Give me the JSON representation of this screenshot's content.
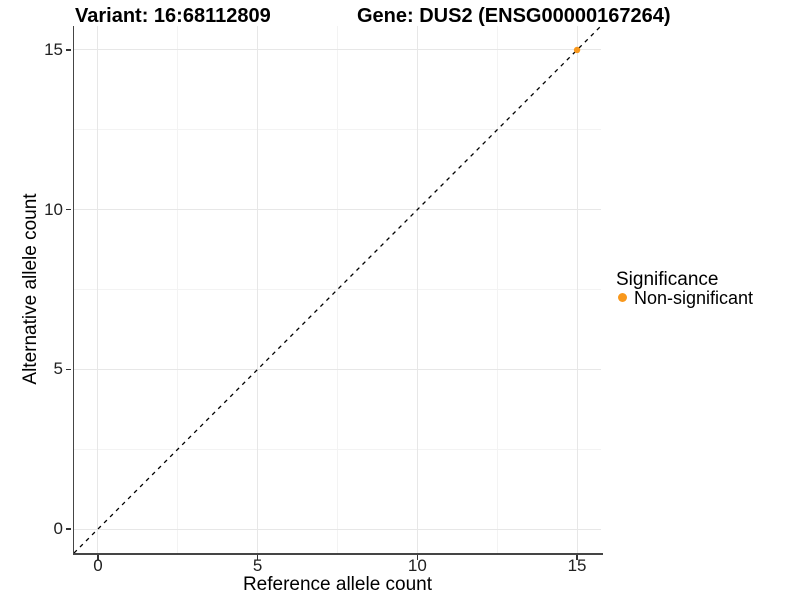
{
  "title": {
    "variant": "Variant: 16:68112809",
    "gene": "Gene: DUS2 (ENSG00000167264)"
  },
  "axes": {
    "x": {
      "label": "Reference allele count",
      "tick_labels": [
        "0",
        "5",
        "10",
        "15"
      ],
      "tick_values": [
        0,
        5,
        10,
        15
      ],
      "minor_values": [
        2.5,
        7.5,
        12.5
      ],
      "lim": [
        -0.75,
        15.75
      ]
    },
    "y": {
      "label": "Alternative allele count",
      "tick_labels": [
        "0",
        "5",
        "10",
        "15"
      ],
      "tick_values": [
        0,
        5,
        10,
        15
      ],
      "minor_values": [
        2.5,
        7.5,
        12.5
      ],
      "lim": [
        -0.75,
        15.75
      ]
    }
  },
  "legend": {
    "title": "Significance",
    "items": [
      {
        "label": "Non-significant",
        "color": "#f8981d"
      }
    ]
  },
  "colors": {
    "point_orange": "#f8981d",
    "grid_major": "#e7e7e7",
    "grid_minor": "#f3f3f3",
    "axis_line": "#454545",
    "dashed_line": "#000000"
  },
  "chart_data": {
    "type": "scatter",
    "title": "Variant: 16:68112809    Gene: DUS2 (ENSG00000167264)",
    "xlabel": "Reference allele count",
    "ylabel": "Alternative allele count",
    "xlim": [
      -0.75,
      15.75
    ],
    "ylim": [
      -0.75,
      15.75
    ],
    "x_ticks": [
      0,
      5,
      10,
      15
    ],
    "y_ticks": [
      0,
      5,
      10,
      15
    ],
    "grid": "on",
    "legend_position": "right",
    "legend_title": "Significance",
    "series": [
      {
        "name": "Non-significant",
        "color": "#f8981d",
        "points": [
          {
            "x": 15,
            "y": 15
          }
        ]
      }
    ],
    "reference_line": {
      "type": "identity",
      "slope": 1,
      "intercept": 0,
      "linetype": "dashed",
      "color": "#000000"
    }
  }
}
